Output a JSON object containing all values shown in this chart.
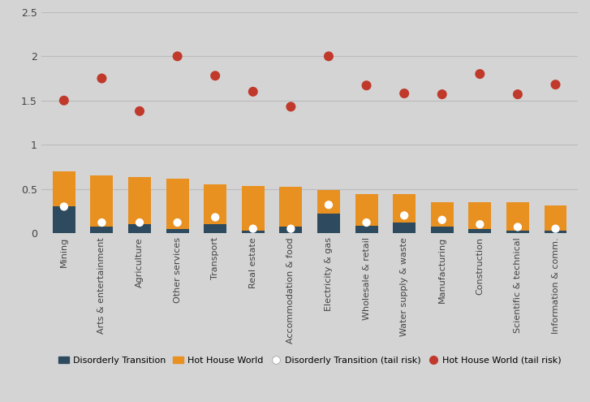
{
  "categories": [
    "Mining",
    "Arts & entertainment",
    "Agriculture",
    "Other services",
    "Transport",
    "Real estate",
    "Accommodation & food",
    "Electricity & gas",
    "Wholesale & retail",
    "Water supply & waste",
    "Manufacturing",
    "Construction",
    "Scientific & technical",
    "Information & comm."
  ],
  "disorderly_transition": [
    0.3,
    0.07,
    0.1,
    0.05,
    0.1,
    0.03,
    0.07,
    0.22,
    0.08,
    0.12,
    0.07,
    0.05,
    0.03,
    0.03
  ],
  "hot_house_world": [
    0.7,
    0.65,
    0.63,
    0.62,
    0.55,
    0.53,
    0.52,
    0.49,
    0.44,
    0.44,
    0.35,
    0.35,
    0.35,
    0.31
  ],
  "disorderly_tail": [
    0.3,
    0.12,
    0.12,
    0.12,
    0.18,
    0.05,
    0.05,
    0.32,
    0.12,
    0.2,
    0.15,
    0.1,
    0.07,
    0.05
  ],
  "hot_house_tail": [
    1.5,
    1.75,
    1.38,
    2.0,
    1.78,
    1.6,
    1.43,
    2.0,
    1.67,
    1.58,
    1.57,
    1.8,
    1.57,
    1.68
  ],
  "bar_color_disorderly": "#2d4a5e",
  "bar_color_hhw": "#e89020",
  "dot_color_disorderly_tail": "#ffffff",
  "dot_color_hhw_tail": "#c0392b",
  "background_color": "#d4d4d4",
  "ylim": [
    0,
    2.5
  ],
  "yticks": [
    0,
    0.5,
    1.0,
    1.5,
    2.0,
    2.5
  ],
  "legend_labels": [
    "Disorderly Transition",
    "Hot House World",
    "Disorderly Transition (tail risk)",
    "Hot House World (tail risk)"
  ]
}
